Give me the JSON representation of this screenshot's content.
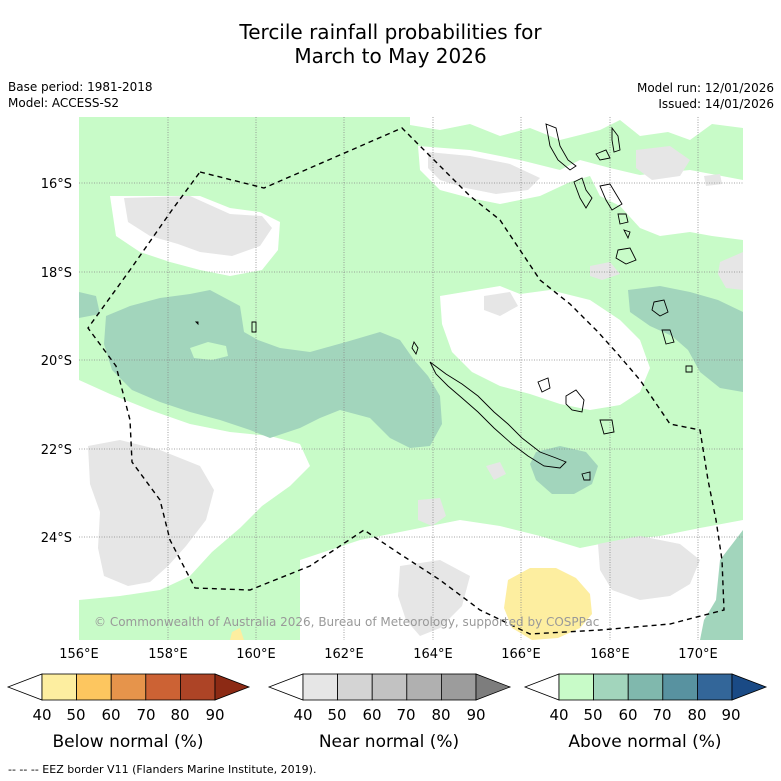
{
  "title": {
    "line1": "Tercile rainfall probabilities for",
    "line2": "March to May 2026"
  },
  "meta_left": {
    "base_period": "Base period: 1981-2018",
    "model": "Model: ACCESS-S2"
  },
  "meta_right": {
    "model_run": "Model run: 12/01/2026",
    "issued": "Issued: 14/01/2026"
  },
  "map": {
    "lat_labels": [
      "16°S",
      "18°S",
      "20°S",
      "22°S",
      "24°S"
    ],
    "lon_labels": [
      "156°E",
      "158°E",
      "160°E",
      "162°E",
      "164°E",
      "166°E",
      "168°E",
      "170°E"
    ],
    "copyright": "© Commonwealth of Australia 2026, Bureau of Meteorology, supported by COSPPac"
  },
  "colorbars": [
    {
      "title": "Below normal (%)",
      "ticks": [
        "40",
        "50",
        "60",
        "70",
        "80",
        "90"
      ],
      "colors": [
        "#ffffff",
        "#fdeea0",
        "#fdc65f",
        "#e6944b",
        "#cc6234",
        "#ad4426",
        "#8c2a14"
      ]
    },
    {
      "title": "Near normal (%)",
      "ticks": [
        "40",
        "50",
        "60",
        "70",
        "80",
        "90"
      ],
      "colors": [
        "#ffffff",
        "#e6e6e6",
        "#d4d4d4",
        "#c2c2c2",
        "#b0b0b0",
        "#9c9c9c",
        "#7d7d7d"
      ]
    },
    {
      "title": "Above normal (%)",
      "ticks": [
        "40",
        "50",
        "60",
        "70",
        "80",
        "90"
      ],
      "colors": [
        "#ffffff",
        "#c8fbc8",
        "#a2d5bc",
        "#80b8ad",
        "#5892a0",
        "#336699",
        "#1a4a85"
      ]
    }
  ],
  "footer": "--  --  -- EEZ border V11 (Flanders Marine Institute, 2019)."
}
